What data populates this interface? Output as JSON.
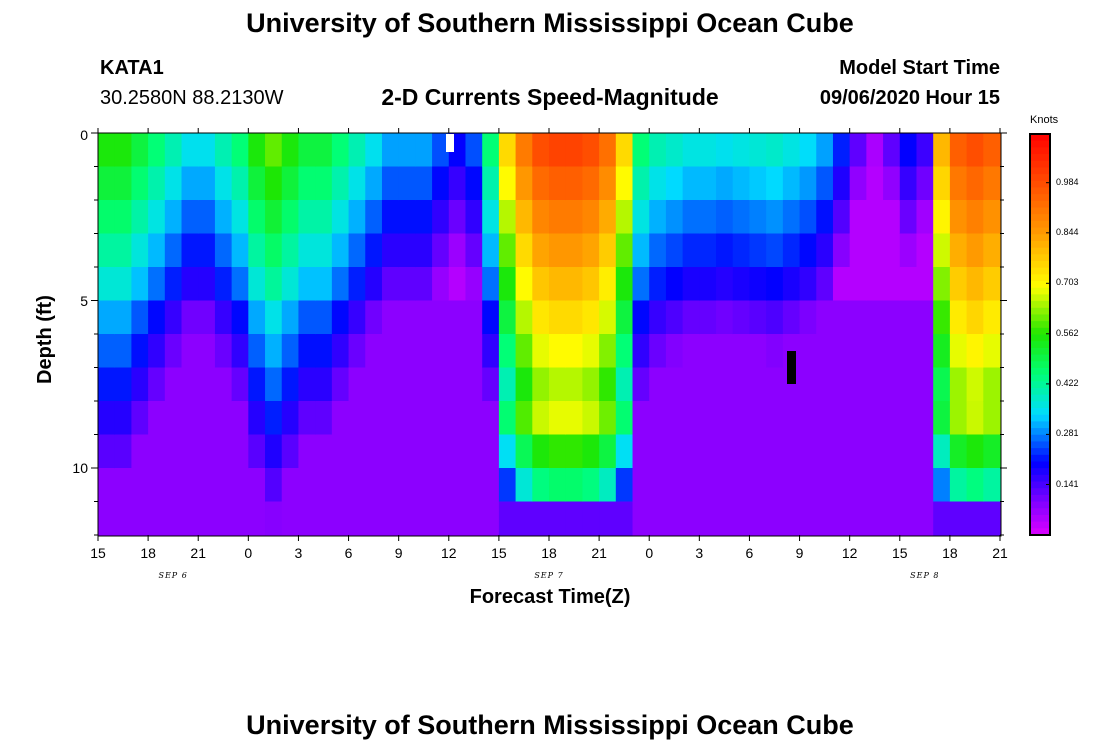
{
  "title_top": "University of Southern Mississippi Ocean Cube",
  "title_bottom": "University of Southern Mississippi Ocean Cube",
  "station": {
    "id": "KATA1",
    "coords": "30.2580N 88.2130W"
  },
  "plot_title": "2-D Currents Speed-Magnitude",
  "model_start": {
    "label": "Model Start Time",
    "value": "09/06/2020 Hour 15"
  },
  "colorbar": {
    "unit": "Knots",
    "ticks": [
      "0.984",
      "0.844",
      "0.703",
      "0.562",
      "0.422",
      "0.281",
      "0.141"
    ]
  },
  "chart_data": {
    "type": "heatmap",
    "xlabel": "Forecast Time(Z)",
    "ylabel": "Depth (ft)",
    "x_tick_labels": [
      "15",
      "18",
      "21",
      "0",
      "3",
      "6",
      "9",
      "12",
      "15",
      "18",
      "21",
      "0",
      "3",
      "6",
      "9",
      "12",
      "15",
      "18",
      "21"
    ],
    "date_labels": [
      {
        "text": "SEP 6",
        "hour_offset": 4.5
      },
      {
        "text": "SEP 7",
        "hour_offset": 27
      },
      {
        "text": "SEP 8",
        "hour_offset": 49.5
      }
    ],
    "x_range_hours": [
      0,
      54
    ],
    "y_ticks": [
      "0",
      "5",
      "10"
    ],
    "y_range_ft": [
      0,
      12
    ],
    "value_range_knots": [
      0,
      1.12
    ],
    "depth_levels": 12,
    "hours": 54,
    "speed_pattern": {
      "description": "surface speeds knots by hour",
      "surface": [
        0.55,
        0.55,
        0.5,
        0.45,
        0.4,
        0.35,
        0.35,
        0.4,
        0.45,
        0.55,
        0.6,
        0.55,
        0.5,
        0.5,
        0.45,
        0.4,
        0.35,
        0.3,
        0.3,
        0.3,
        0.25,
        0.2,
        0.25,
        0.45,
        0.75,
        0.9,
        0.98,
        1.0,
        1.0,
        0.98,
        0.92,
        0.75,
        0.45,
        0.4,
        0.38,
        0.36,
        0.36,
        0.35,
        0.36,
        0.37,
        0.38,
        0.36,
        0.34,
        0.3,
        0.22,
        0.12,
        0.05,
        0.12,
        0.2,
        0.15,
        0.8,
        0.95,
        0.98,
        0.95
      ]
    }
  }
}
